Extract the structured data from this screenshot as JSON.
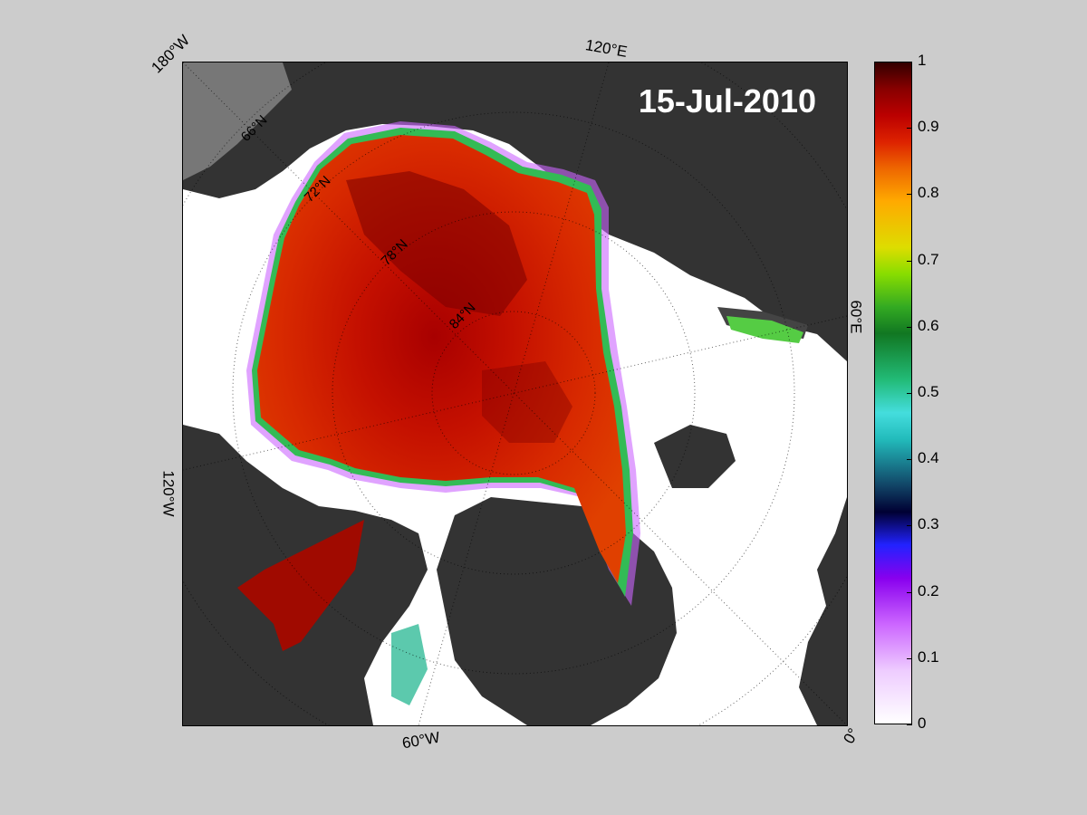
{
  "map": {
    "date": "15-Jul-2010",
    "longitude_labels": {
      "lon_180w": "180°W",
      "lon_120e": "120°E",
      "lon_60e": "60°E",
      "lon_120w": "120°W",
      "lon_60w": "60°W",
      "lon_0": "0°"
    },
    "latitude_labels": [
      "66°N",
      "72°N",
      "78°N",
      "84°N"
    ],
    "colors": {
      "land": "#333333",
      "land_edge": "#888888",
      "open_water": "#ffffff",
      "background": "#cccccc"
    }
  },
  "colorbar": {
    "min": 0,
    "max": 1,
    "ticks": [
      "0",
      "0.1",
      "0.2",
      "0.3",
      "0.4",
      "0.5",
      "0.6",
      "0.7",
      "0.8",
      "0.9",
      "1"
    ]
  }
}
